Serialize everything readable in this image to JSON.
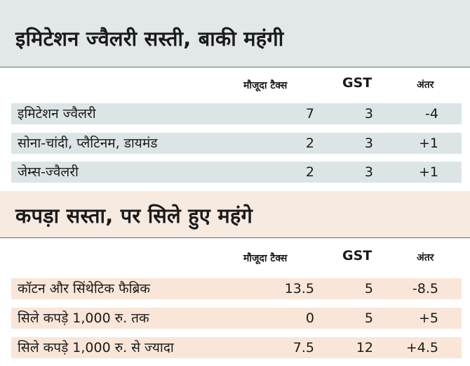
{
  "colors": {
    "section1_band": "#e2e8ea",
    "section1_row": "#dce5e6",
    "section2_band": "#f7ebe1",
    "section2_row": "#f9e6d8",
    "text": "#1a1a1a"
  },
  "section1": {
    "title": "इमिटेशन ज्वैलरी सस्ती, बाकी महंगी",
    "headers": {
      "current_tax": "मौजूदा टैक्स",
      "gst": "GST",
      "diff": "अंतर"
    },
    "rows": [
      {
        "name": "इमिटेशन ज्वैलरी",
        "current_tax": "7",
        "gst": "3",
        "diff": "-4"
      },
      {
        "name": "सोना-चांदी, प्लैटिनम, डायमंड",
        "current_tax": "2",
        "gst": "3",
        "diff": "+1"
      },
      {
        "name": "जेम्स-ज्वैलरी",
        "current_tax": "2",
        "gst": "3",
        "diff": "+1"
      }
    ]
  },
  "section2": {
    "title": "कपड़ा सस्ता, पर सिले हुए महंगे",
    "headers": {
      "current_tax": "मौजूदा टैक्स",
      "gst": "GST",
      "diff": "अंतर"
    },
    "rows": [
      {
        "name": "कॉटन और सिंथेटिक फैब्रिक",
        "current_tax": "13.5",
        "gst": "5",
        "diff": "-8.5"
      },
      {
        "name": "सिले कपड़े 1,000 रु. तक",
        "current_tax": "0",
        "gst": "5",
        "diff": "+5"
      },
      {
        "name": "सिले कपड़े 1,000 रु. से ज्यादा",
        "current_tax": "7.5",
        "gst": "12",
        "diff": "+4.5"
      }
    ]
  }
}
